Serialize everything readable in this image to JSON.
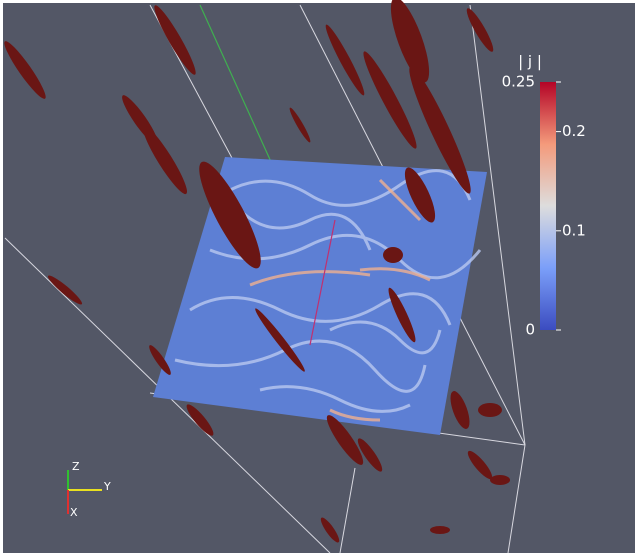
{
  "colorbar": {
    "title": "| j |",
    "range": [
      0,
      0.25
    ],
    "ticks": [
      0.25,
      0.2,
      0.1,
      0
    ]
  },
  "axes_triad": {
    "z": "Z",
    "y": "Y",
    "x": "X"
  }
}
